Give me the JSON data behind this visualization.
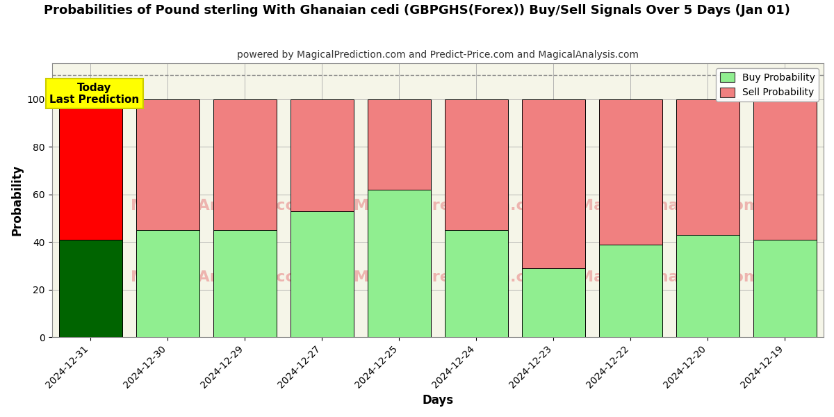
{
  "title": "Probabilities of Pound sterling With Ghanaian cedi (GBPGHS(Forex)) Buy/Sell Signals Over 5 Days (Jan 01)",
  "subtitle": "powered by MagicalPrediction.com and Predict-Price.com and MagicalAnalysis.com",
  "xlabel": "Days",
  "ylabel": "Probability",
  "dates": [
    "2024-12-31",
    "2024-12-30",
    "2024-12-29",
    "2024-12-27",
    "2024-12-25",
    "2024-12-24",
    "2024-12-23",
    "2024-12-22",
    "2024-12-20",
    "2024-12-19"
  ],
  "buy_values": [
    41,
    45,
    45,
    53,
    62,
    45,
    29,
    39,
    43,
    41
  ],
  "sell_values": [
    59,
    55,
    55,
    47,
    38,
    55,
    71,
    61,
    57,
    59
  ],
  "today_bar_buy_color": "#006400",
  "today_bar_sell_color": "#FF0000",
  "other_bar_buy_color": "#90EE90",
  "other_bar_sell_color": "#F08080",
  "bar_edge_color": "#000000",
  "annotation_text": "Today\nLast Prediction",
  "annotation_bg_color": "#FFFF00",
  "annotation_edge_color": "#CCCC00",
  "dashed_line_y": 110,
  "dashed_line_color": "#888888",
  "ylim": [
    0,
    115
  ],
  "yticks": [
    0,
    20,
    40,
    60,
    80,
    100
  ],
  "legend_buy_color": "#90EE90",
  "legend_sell_color": "#F08080",
  "watermark_color": "#E88080",
  "grid_color": "#aaaaaa",
  "bg_color": "#f5f5e8",
  "title_fontsize": 13,
  "subtitle_fontsize": 10,
  "bar_width": 0.82
}
